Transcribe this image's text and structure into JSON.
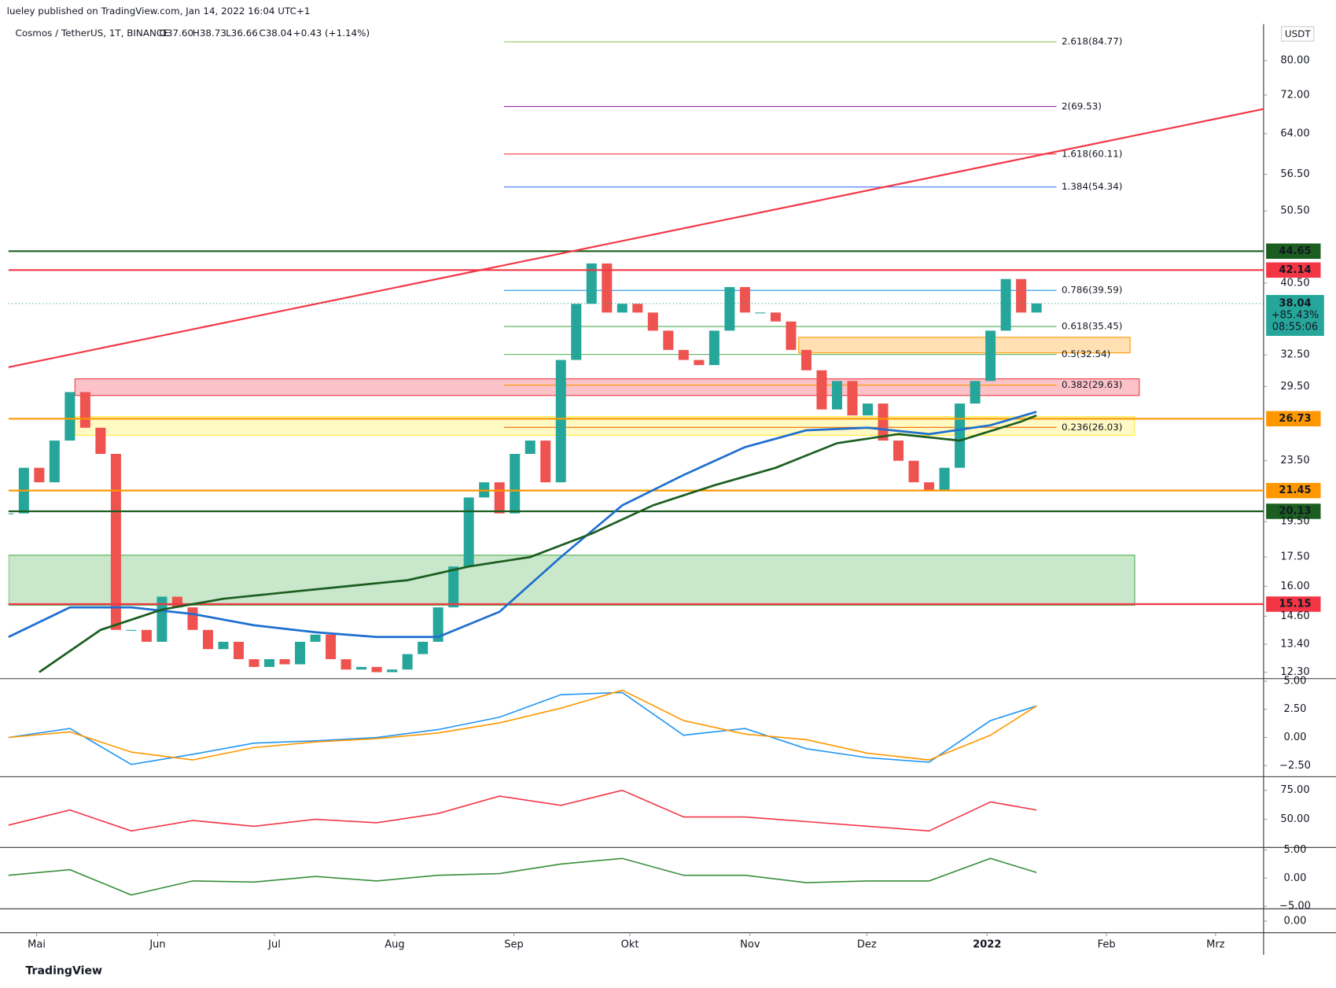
{
  "header": {
    "published": "lueley published on TradingView.com, Jan 14, 2022 16:04 UTC+1",
    "symbol": "Cosmos / TetherUS, 1T, BINANCE",
    "ohlc": [
      "O37.60",
      "H38.73",
      "L36.66",
      "C38.04",
      "+0.43 (+1.14%)"
    ],
    "currency": "USDT",
    "footer": "TradingView"
  },
  "chart_data": [
    {
      "type": "candlestick",
      "log_scale": true,
      "up_color": "#26a69a",
      "down_color": "#ef5350",
      "values": [
        20,
        23,
        22,
        25,
        29,
        26,
        24,
        14,
        14,
        13.5,
        15.5,
        15,
        14,
        13.2,
        13.5,
        12.8,
        12.5,
        12.8,
        12.6,
        13.5,
        13.8,
        12.8,
        12.4,
        12.5,
        12.3,
        12.4,
        13,
        13.5,
        15,
        17,
        21,
        22,
        20,
        24,
        25,
        22,
        32,
        38,
        43,
        37,
        38,
        37,
        35,
        33,
        32,
        31.5,
        35,
        40,
        37,
        37,
        36,
        33,
        31,
        27.5,
        30,
        27,
        28,
        25,
        23.5,
        22,
        21.5,
        23,
        28,
        30,
        35,
        41,
        37,
        38.04
      ],
      "xlim": [
        0,
        81.8
      ],
      "xticks": [
        {
          "value": 1.83,
          "label": "Mai"
        },
        {
          "value": 9.72,
          "label": "Jun"
        },
        {
          "value": 17.33,
          "label": "Jul"
        },
        {
          "value": 25.17,
          "label": "Aug"
        },
        {
          "value": 32.94,
          "label": "Sep"
        },
        {
          "value": 40.5,
          "label": "Okt"
        },
        {
          "value": 48.33,
          "label": "Nov"
        },
        {
          "value": 55.94,
          "label": "Dez"
        },
        {
          "value": 63.78,
          "label": "2022"
        },
        {
          "value": 71.56,
          "label": "Feb"
        },
        {
          "value": 78.67,
          "label": "Mrz"
        }
      ],
      "ylim": [
        12.09,
        89.5
      ],
      "yticks": [
        {
          "value": 80,
          "label": "80.00"
        },
        {
          "value": 72,
          "label": "72.00"
        },
        {
          "value": 64,
          "label": "64.00"
        },
        {
          "value": 56.5,
          "label": "56.50"
        },
        {
          "value": 50.5,
          "label": "50.50"
        },
        {
          "value": 40.5,
          "label": "40.50"
        },
        {
          "value": 32.5,
          "label": "32.50"
        },
        {
          "value": 29.5,
          "label": "29.50"
        },
        {
          "value": 23.5,
          "label": "23.50"
        },
        {
          "value": 19.5,
          "label": "19.50"
        },
        {
          "value": 17.5,
          "label": "17.50"
        },
        {
          "value": 16,
          "label": "16.00"
        },
        {
          "value": 14.6,
          "label": "14.60"
        },
        {
          "value": 13.4,
          "label": "13.40"
        },
        {
          "value": 12.3,
          "label": "12.30"
        }
      ],
      "levels": [
        {
          "value": 44.65,
          "color": "#1b5e20"
        },
        {
          "value": 42.14,
          "color": "#f23645"
        },
        {
          "value": 26.73,
          "color": "#ff9800"
        },
        {
          "value": 21.45,
          "color": "#ff9800"
        },
        {
          "value": 20.13,
          "color": "#1b5e20"
        },
        {
          "value": 15.15,
          "color": "#f23645"
        }
      ],
      "last_price": {
        "value": 38.04,
        "change": "+85.43%",
        "countdown": "08:55:06",
        "color": "#26a69a"
      },
      "fib_xrange": [
        32.3,
        68.3
      ],
      "fib": [
        {
          "value": 84.77,
          "label": "2.618(84.77)",
          "color": "#8bc34a"
        },
        {
          "value": 69.53,
          "label": "2(69.53)",
          "color": "#9c27b0"
        },
        {
          "value": 60.11,
          "label": "1.618(60.11)",
          "color": "#f23645"
        },
        {
          "value": 54.34,
          "label": "1.384(54.34)",
          "color": "#2962ff"
        },
        {
          "value": 39.59,
          "label": "0.786(39.59)",
          "color": "#2196f3"
        },
        {
          "value": 35.45,
          "label": "0.618(35.45)",
          "color": "#4caf50"
        },
        {
          "value": 32.54,
          "label": "0.5(32.54)",
          "color": "#4caf50"
        },
        {
          "value": 29.63,
          "label": "0.382(29.63)",
          "color": "#ff9800"
        },
        {
          "value": 26.03,
          "label": "0.236(26.03)",
          "color": "#ef6c00"
        }
      ],
      "zones": [
        {
          "range": [
            15.1,
            17.6
          ],
          "xrange": [
            0,
            73.4
          ],
          "color": "#4caf50"
        },
        {
          "range": [
            28.7,
            30.2
          ],
          "xrange": [
            4.33,
            73.7
          ],
          "color": "#f23645"
        },
        {
          "range": [
            25.4,
            26.9
          ],
          "xrange": [
            4.33,
            73.4
          ],
          "color": "#ffeb3b"
        },
        {
          "range": [
            32.7,
            34.3
          ],
          "xrange": [
            51.5,
            73.1
          ],
          "color": "#ff9800"
        }
      ],
      "trendline": {
        "x": [
          0,
          81.8
        ],
        "values": [
          31.3,
          69
        ],
        "color": "#f23645"
      },
      "overlays": [
        {
          "color": "#1e6fd0",
          "x": [
            0,
            4,
            8,
            12,
            16,
            20,
            24,
            28,
            32,
            36,
            40,
            44,
            48,
            52,
            56,
            60,
            64,
            67
          ],
          "values": [
            13.7,
            15,
            15,
            14.7,
            14.2,
            13.9,
            13.7,
            13.7,
            14.8,
            17.5,
            20.5,
            22.5,
            24.5,
            25.8,
            26,
            25.5,
            26.2,
            27.3
          ]
        },
        {
          "color": "#1b5e20",
          "x": [
            2,
            6,
            10,
            14,
            18,
            22,
            26,
            30,
            34,
            38,
            42,
            46,
            50,
            54,
            58,
            62,
            66,
            67
          ],
          "values": [
            12.3,
            14,
            14.9,
            15.4,
            15.7,
            16,
            16.3,
            17,
            17.5,
            18.8,
            20.5,
            21.8,
            23,
            24.8,
            25.5,
            25,
            26.5,
            27
          ]
        }
      ]
    },
    {
      "type": "line",
      "xlim": [
        0,
        81.8
      ],
      "ylim": [
        -3.41,
        5.15
      ],
      "yticks": [
        {
          "value": 5,
          "label": "5.00"
        },
        {
          "value": 2.5,
          "label": "2.50"
        },
        {
          "value": 0,
          "label": "0.00"
        },
        {
          "value": -2.5,
          "label": "−2.50"
        }
      ],
      "x": [
        0,
        4,
        8,
        12,
        16,
        20,
        24,
        28,
        32,
        36,
        40,
        44,
        48,
        52,
        56,
        60,
        64,
        67
      ],
      "series": [
        {
          "color": "#2196f3",
          "values": [
            0,
            0.8,
            -2.4,
            -1.5,
            -0.5,
            -0.3,
            0,
            0.7,
            1.8,
            3.8,
            4,
            0.2,
            0.8,
            -1,
            -1.8,
            -2.2,
            1.5,
            2.8
          ]
        },
        {
          "color": "#ff9800",
          "values": [
            0,
            0.5,
            -1.3,
            -2,
            -0.9,
            -0.4,
            -0.1,
            0.4,
            1.3,
            2.6,
            4.2,
            1.5,
            0.3,
            -0.2,
            -1.4,
            -2,
            0.2,
            2.8
          ]
        }
      ]
    },
    {
      "type": "line",
      "xlim": [
        0,
        81.8
      ],
      "ylim": [
        26.5,
        86
      ],
      "yticks": [
        {
          "value": 75,
          "label": "75.00"
        },
        {
          "value": 50,
          "label": "50.00"
        }
      ],
      "x": [
        0,
        4,
        8,
        12,
        16,
        20,
        24,
        28,
        32,
        36,
        40,
        44,
        48,
        52,
        56,
        60,
        64,
        67
      ],
      "series": [
        {
          "color": "#f23645",
          "values": [
            45,
            58,
            40,
            49,
            44,
            50,
            47,
            55,
            70,
            62,
            75,
            52,
            52,
            48,
            44,
            40,
            65,
            58
          ]
        }
      ]
    },
    {
      "type": "line",
      "xlim": [
        0,
        81.8
      ],
      "ylim": [
        -5.3,
        5.3
      ],
      "yticks": [
        {
          "value": 5,
          "label": "5.00"
        },
        {
          "value": 0,
          "label": "0.00"
        },
        {
          "value": -5,
          "label": "−5.00"
        }
      ],
      "x": [
        0,
        4,
        8,
        12,
        16,
        20,
        24,
        28,
        32,
        36,
        40,
        44,
        48,
        52,
        56,
        60,
        64,
        67
      ],
      "series": [
        {
          "color": "#388e3c",
          "values": [
            0.5,
            1.5,
            -3,
            -0.5,
            -0.7,
            0.3,
            -0.5,
            0.5,
            0.8,
            2.5,
            3.5,
            0.5,
            0.5,
            -0.8,
            -0.5,
            -0.5,
            3.5,
            1
          ]
        }
      ]
    },
    {
      "type": "line",
      "xlim": [
        0,
        81.8
      ],
      "ylim": [
        -1,
        1
      ],
      "yticks": [
        {
          "value": 0,
          "label": "0.00"
        }
      ],
      "x": [],
      "series": []
    }
  ]
}
